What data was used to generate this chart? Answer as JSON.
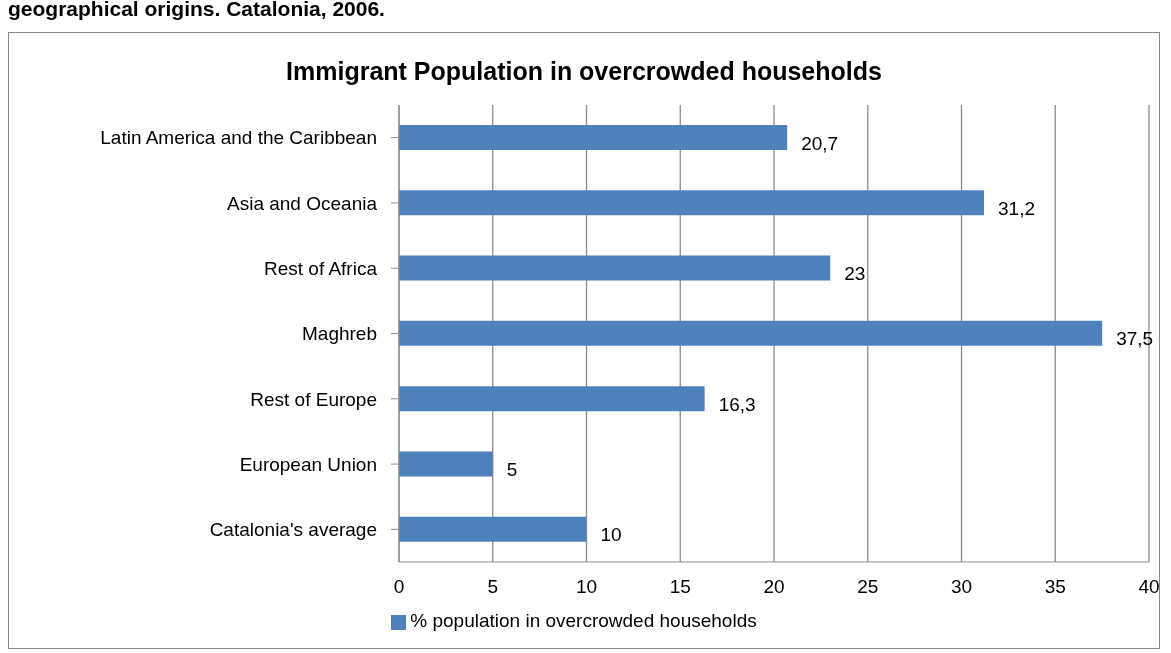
{
  "chart_data": {
    "type": "bar",
    "orientation": "horizontal",
    "title": "Immigrant Population in overcrowded households",
    "annotations": [
      "geographical origins. Catalonia, 2006."
    ],
    "categories": [
      "Latin America and the Caribbean",
      "Asia and Oceania",
      "Rest of Africa",
      "Maghreb",
      "Rest of Europe",
      "European Union",
      "Catalonia's average"
    ],
    "series": [
      {
        "name": "% population  in overcrowded households",
        "color": "#4f81bd",
        "values": [
          20.7,
          31.2,
          23,
          37.5,
          16.3,
          5,
          10
        ],
        "value_labels": [
          "20,7",
          "31,2",
          "23",
          "37,5",
          "16,3",
          "5",
          "10"
        ]
      }
    ],
    "xlim": [
      0,
      40
    ],
    "xticks": [
      0,
      5,
      10,
      15,
      20,
      25,
      30,
      35,
      40
    ],
    "grid": "x",
    "legend": "bottom"
  }
}
